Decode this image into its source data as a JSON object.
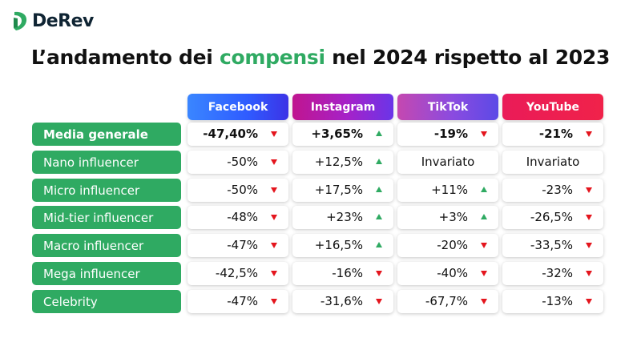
{
  "brand": {
    "name": "DeRev"
  },
  "title": {
    "before": "L’andamento dei ",
    "accent": "compensi",
    "after": " nel 2024 rispetto al 2023"
  },
  "colors": {
    "green": "#2faa62",
    "red_arrow": "#e4151d",
    "green_arrow": "#2faa62",
    "youtube": "#ea1b58",
    "facebook": "#2f5bff"
  },
  "columns": [
    "Facebook",
    "Instagram",
    "TikTok",
    "YouTube"
  ],
  "rows": [
    {
      "label": "Media generale",
      "bold": true,
      "cells": [
        {
          "value": "-47,40%",
          "trend": "down"
        },
        {
          "value": "+3,65%",
          "trend": "up"
        },
        {
          "value": "-19%",
          "trend": "down"
        },
        {
          "value": "-21%",
          "trend": "down"
        }
      ]
    },
    {
      "label": "Nano influencer",
      "bold": false,
      "cells": [
        {
          "value": "-50%",
          "trend": "down"
        },
        {
          "value": "+12,5%",
          "trend": "up"
        },
        {
          "value": "Invariato",
          "trend": "none"
        },
        {
          "value": "Invariato",
          "trend": "none"
        }
      ]
    },
    {
      "label": "Micro influencer",
      "bold": false,
      "cells": [
        {
          "value": "-50%",
          "trend": "down"
        },
        {
          "value": "+17,5%",
          "trend": "up"
        },
        {
          "value": "+11%",
          "trend": "up"
        },
        {
          "value": "-23%",
          "trend": "down"
        }
      ]
    },
    {
      "label": "Mid-tier influencer",
      "bold": false,
      "cells": [
        {
          "value": "-48%",
          "trend": "down"
        },
        {
          "value": "+23%",
          "trend": "up"
        },
        {
          "value": "+3%",
          "trend": "up"
        },
        {
          "value": "-26,5%",
          "trend": "down"
        }
      ]
    },
    {
      "label": "Macro influencer",
      "bold": false,
      "cells": [
        {
          "value": "-47%",
          "trend": "down"
        },
        {
          "value": "+16,5%",
          "trend": "up"
        },
        {
          "value": "-20%",
          "trend": "down"
        },
        {
          "value": "-33,5%",
          "trend": "down"
        }
      ]
    },
    {
      "label": "Mega influencer",
      "bold": false,
      "cells": [
        {
          "value": "-42,5%",
          "trend": "down"
        },
        {
          "value": "-16%",
          "trend": "down"
        },
        {
          "value": "-40%",
          "trend": "down"
        },
        {
          "value": "-32%",
          "trend": "down"
        }
      ]
    },
    {
      "label": "Celebrity",
      "bold": false,
      "cells": [
        {
          "value": "-47%",
          "trend": "down"
        },
        {
          "value": "-31,6%",
          "trend": "down"
        },
        {
          "value": "-67,7%",
          "trend": "down"
        },
        {
          "value": "-13%",
          "trend": "down"
        }
      ]
    }
  ]
}
